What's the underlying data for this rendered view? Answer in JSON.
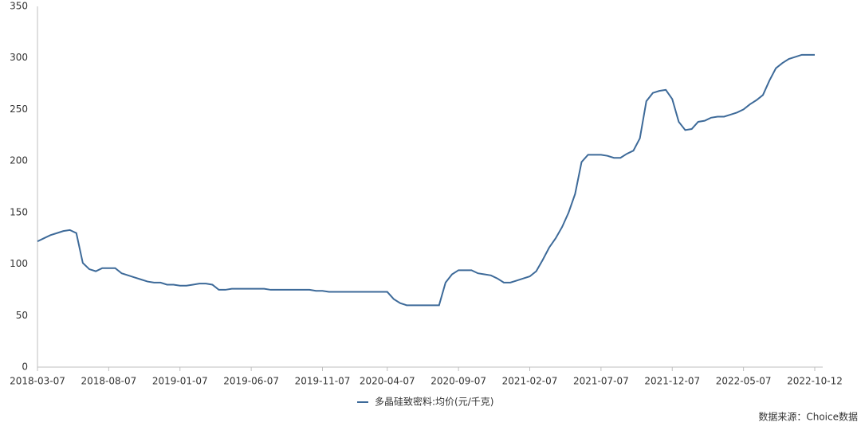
{
  "chart_data": {
    "type": "line",
    "categories": [
      "2018-03-07",
      null,
      null,
      null,
      null,
      null,
      null,
      null,
      null,
      null,
      null,
      "2018-08-07",
      null,
      null,
      null,
      null,
      null,
      null,
      null,
      null,
      null,
      null,
      "2019-01-07",
      null,
      null,
      null,
      null,
      null,
      null,
      null,
      null,
      null,
      null,
      "2019-06-07",
      null,
      null,
      null,
      null,
      null,
      null,
      null,
      null,
      null,
      null,
      "2019-11-07",
      null,
      null,
      null,
      null,
      null,
      null,
      null,
      null,
      null,
      "2020-04-07",
      null,
      null,
      null,
      null,
      null,
      null,
      null,
      null,
      null,
      null,
      "2020-09-07",
      null,
      null,
      null,
      null,
      null,
      null,
      null,
      null,
      null,
      null,
      "2021-02-07",
      null,
      null,
      null,
      null,
      null,
      null,
      null,
      null,
      null,
      null,
      "2021-07-07",
      null,
      null,
      null,
      null,
      null,
      null,
      null,
      null,
      null,
      null,
      "2021-12-07",
      null,
      null,
      null,
      null,
      null,
      null,
      null,
      null,
      null,
      null,
      "2022-05-07",
      null,
      null,
      null,
      null,
      null,
      null,
      null,
      null,
      null,
      null,
      "2022-10-12"
    ],
    "series": [
      {
        "name": "多晶硅致密料:均价(元/千克)",
        "color": "#3d6a99",
        "values": [
          122,
          125,
          128,
          130,
          132,
          133,
          130,
          101,
          95,
          93,
          96,
          96,
          96,
          91,
          89,
          87,
          85,
          83,
          82,
          82,
          80,
          80,
          79,
          79,
          80,
          81,
          81,
          80,
          75,
          75,
          76,
          76,
          76,
          76,
          76,
          76,
          75,
          75,
          75,
          75,
          75,
          75,
          75,
          74,
          74,
          73,
          73,
          73,
          73,
          73,
          73,
          73,
          73,
          73,
          73,
          66,
          62,
          60,
          60,
          60,
          60,
          60,
          60,
          82,
          90,
          94,
          94,
          94,
          91,
          90,
          89,
          86,
          82,
          82,
          84,
          86,
          88,
          93,
          104,
          116,
          125,
          136,
          150,
          168,
          199,
          206,
          206,
          206,
          205,
          203,
          203,
          207,
          210,
          222,
          258,
          266,
          268,
          269,
          260,
          238,
          230,
          231,
          238,
          239,
          242,
          243,
          243,
          245,
          247,
          250,
          255,
          259,
          264,
          278,
          290,
          295,
          299,
          301,
          303,
          303,
          303
        ]
      }
    ],
    "ylim": [
      0,
      350
    ],
    "yticks": [
      0,
      50,
      100,
      150,
      200,
      250,
      300,
      350
    ],
    "grid": false,
    "source": "数据来源：Choice数据"
  }
}
